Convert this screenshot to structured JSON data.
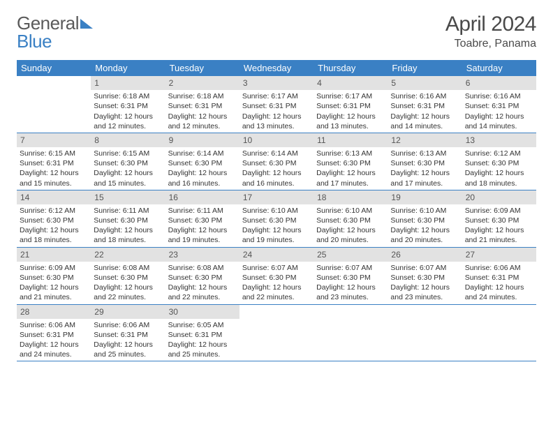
{
  "logo": {
    "word1": "General",
    "word2": "Blue"
  },
  "title": "April 2024",
  "location": "Toabre, Panama",
  "colors": {
    "header_bg": "#3a80c4",
    "header_text": "#ffffff",
    "daynum_bg": "#e2e2e2",
    "daynum_text": "#555555",
    "body_text": "#333333",
    "divider": "#3a80c4"
  },
  "typography": {
    "month_title_fontsize": 30,
    "location_fontsize": 16,
    "weekday_fontsize": 13,
    "daynum_fontsize": 12,
    "cell_fontsize": 10.5
  },
  "weekdays": [
    "Sunday",
    "Monday",
    "Tuesday",
    "Wednesday",
    "Thursday",
    "Friday",
    "Saturday"
  ],
  "weeks": [
    [
      {
        "num": "",
        "sunrise": "",
        "sunset": "",
        "daylight": ""
      },
      {
        "num": "1",
        "sunrise": "Sunrise: 6:18 AM",
        "sunset": "Sunset: 6:31 PM",
        "daylight": "Daylight: 12 hours and 12 minutes."
      },
      {
        "num": "2",
        "sunrise": "Sunrise: 6:18 AM",
        "sunset": "Sunset: 6:31 PM",
        "daylight": "Daylight: 12 hours and 12 minutes."
      },
      {
        "num": "3",
        "sunrise": "Sunrise: 6:17 AM",
        "sunset": "Sunset: 6:31 PM",
        "daylight": "Daylight: 12 hours and 13 minutes."
      },
      {
        "num": "4",
        "sunrise": "Sunrise: 6:17 AM",
        "sunset": "Sunset: 6:31 PM",
        "daylight": "Daylight: 12 hours and 13 minutes."
      },
      {
        "num": "5",
        "sunrise": "Sunrise: 6:16 AM",
        "sunset": "Sunset: 6:31 PM",
        "daylight": "Daylight: 12 hours and 14 minutes."
      },
      {
        "num": "6",
        "sunrise": "Sunrise: 6:16 AM",
        "sunset": "Sunset: 6:31 PM",
        "daylight": "Daylight: 12 hours and 14 minutes."
      }
    ],
    [
      {
        "num": "7",
        "sunrise": "Sunrise: 6:15 AM",
        "sunset": "Sunset: 6:31 PM",
        "daylight": "Daylight: 12 hours and 15 minutes."
      },
      {
        "num": "8",
        "sunrise": "Sunrise: 6:15 AM",
        "sunset": "Sunset: 6:30 PM",
        "daylight": "Daylight: 12 hours and 15 minutes."
      },
      {
        "num": "9",
        "sunrise": "Sunrise: 6:14 AM",
        "sunset": "Sunset: 6:30 PM",
        "daylight": "Daylight: 12 hours and 16 minutes."
      },
      {
        "num": "10",
        "sunrise": "Sunrise: 6:14 AM",
        "sunset": "Sunset: 6:30 PM",
        "daylight": "Daylight: 12 hours and 16 minutes."
      },
      {
        "num": "11",
        "sunrise": "Sunrise: 6:13 AM",
        "sunset": "Sunset: 6:30 PM",
        "daylight": "Daylight: 12 hours and 17 minutes."
      },
      {
        "num": "12",
        "sunrise": "Sunrise: 6:13 AM",
        "sunset": "Sunset: 6:30 PM",
        "daylight": "Daylight: 12 hours and 17 minutes."
      },
      {
        "num": "13",
        "sunrise": "Sunrise: 6:12 AM",
        "sunset": "Sunset: 6:30 PM",
        "daylight": "Daylight: 12 hours and 18 minutes."
      }
    ],
    [
      {
        "num": "14",
        "sunrise": "Sunrise: 6:12 AM",
        "sunset": "Sunset: 6:30 PM",
        "daylight": "Daylight: 12 hours and 18 minutes."
      },
      {
        "num": "15",
        "sunrise": "Sunrise: 6:11 AM",
        "sunset": "Sunset: 6:30 PM",
        "daylight": "Daylight: 12 hours and 18 minutes."
      },
      {
        "num": "16",
        "sunrise": "Sunrise: 6:11 AM",
        "sunset": "Sunset: 6:30 PM",
        "daylight": "Daylight: 12 hours and 19 minutes."
      },
      {
        "num": "17",
        "sunrise": "Sunrise: 6:10 AM",
        "sunset": "Sunset: 6:30 PM",
        "daylight": "Daylight: 12 hours and 19 minutes."
      },
      {
        "num": "18",
        "sunrise": "Sunrise: 6:10 AM",
        "sunset": "Sunset: 6:30 PM",
        "daylight": "Daylight: 12 hours and 20 minutes."
      },
      {
        "num": "19",
        "sunrise": "Sunrise: 6:10 AM",
        "sunset": "Sunset: 6:30 PM",
        "daylight": "Daylight: 12 hours and 20 minutes."
      },
      {
        "num": "20",
        "sunrise": "Sunrise: 6:09 AM",
        "sunset": "Sunset: 6:30 PM",
        "daylight": "Daylight: 12 hours and 21 minutes."
      }
    ],
    [
      {
        "num": "21",
        "sunrise": "Sunrise: 6:09 AM",
        "sunset": "Sunset: 6:30 PM",
        "daylight": "Daylight: 12 hours and 21 minutes."
      },
      {
        "num": "22",
        "sunrise": "Sunrise: 6:08 AM",
        "sunset": "Sunset: 6:30 PM",
        "daylight": "Daylight: 12 hours and 22 minutes."
      },
      {
        "num": "23",
        "sunrise": "Sunrise: 6:08 AM",
        "sunset": "Sunset: 6:30 PM",
        "daylight": "Daylight: 12 hours and 22 minutes."
      },
      {
        "num": "24",
        "sunrise": "Sunrise: 6:07 AM",
        "sunset": "Sunset: 6:30 PM",
        "daylight": "Daylight: 12 hours and 22 minutes."
      },
      {
        "num": "25",
        "sunrise": "Sunrise: 6:07 AM",
        "sunset": "Sunset: 6:30 PM",
        "daylight": "Daylight: 12 hours and 23 minutes."
      },
      {
        "num": "26",
        "sunrise": "Sunrise: 6:07 AM",
        "sunset": "Sunset: 6:30 PM",
        "daylight": "Daylight: 12 hours and 23 minutes."
      },
      {
        "num": "27",
        "sunrise": "Sunrise: 6:06 AM",
        "sunset": "Sunset: 6:31 PM",
        "daylight": "Daylight: 12 hours and 24 minutes."
      }
    ],
    [
      {
        "num": "28",
        "sunrise": "Sunrise: 6:06 AM",
        "sunset": "Sunset: 6:31 PM",
        "daylight": "Daylight: 12 hours and 24 minutes."
      },
      {
        "num": "29",
        "sunrise": "Sunrise: 6:06 AM",
        "sunset": "Sunset: 6:31 PM",
        "daylight": "Daylight: 12 hours and 25 minutes."
      },
      {
        "num": "30",
        "sunrise": "Sunrise: 6:05 AM",
        "sunset": "Sunset: 6:31 PM",
        "daylight": "Daylight: 12 hours and 25 minutes."
      },
      {
        "num": "",
        "sunrise": "",
        "sunset": "",
        "daylight": ""
      },
      {
        "num": "",
        "sunrise": "",
        "sunset": "",
        "daylight": ""
      },
      {
        "num": "",
        "sunrise": "",
        "sunset": "",
        "daylight": ""
      },
      {
        "num": "",
        "sunrise": "",
        "sunset": "",
        "daylight": ""
      }
    ]
  ]
}
